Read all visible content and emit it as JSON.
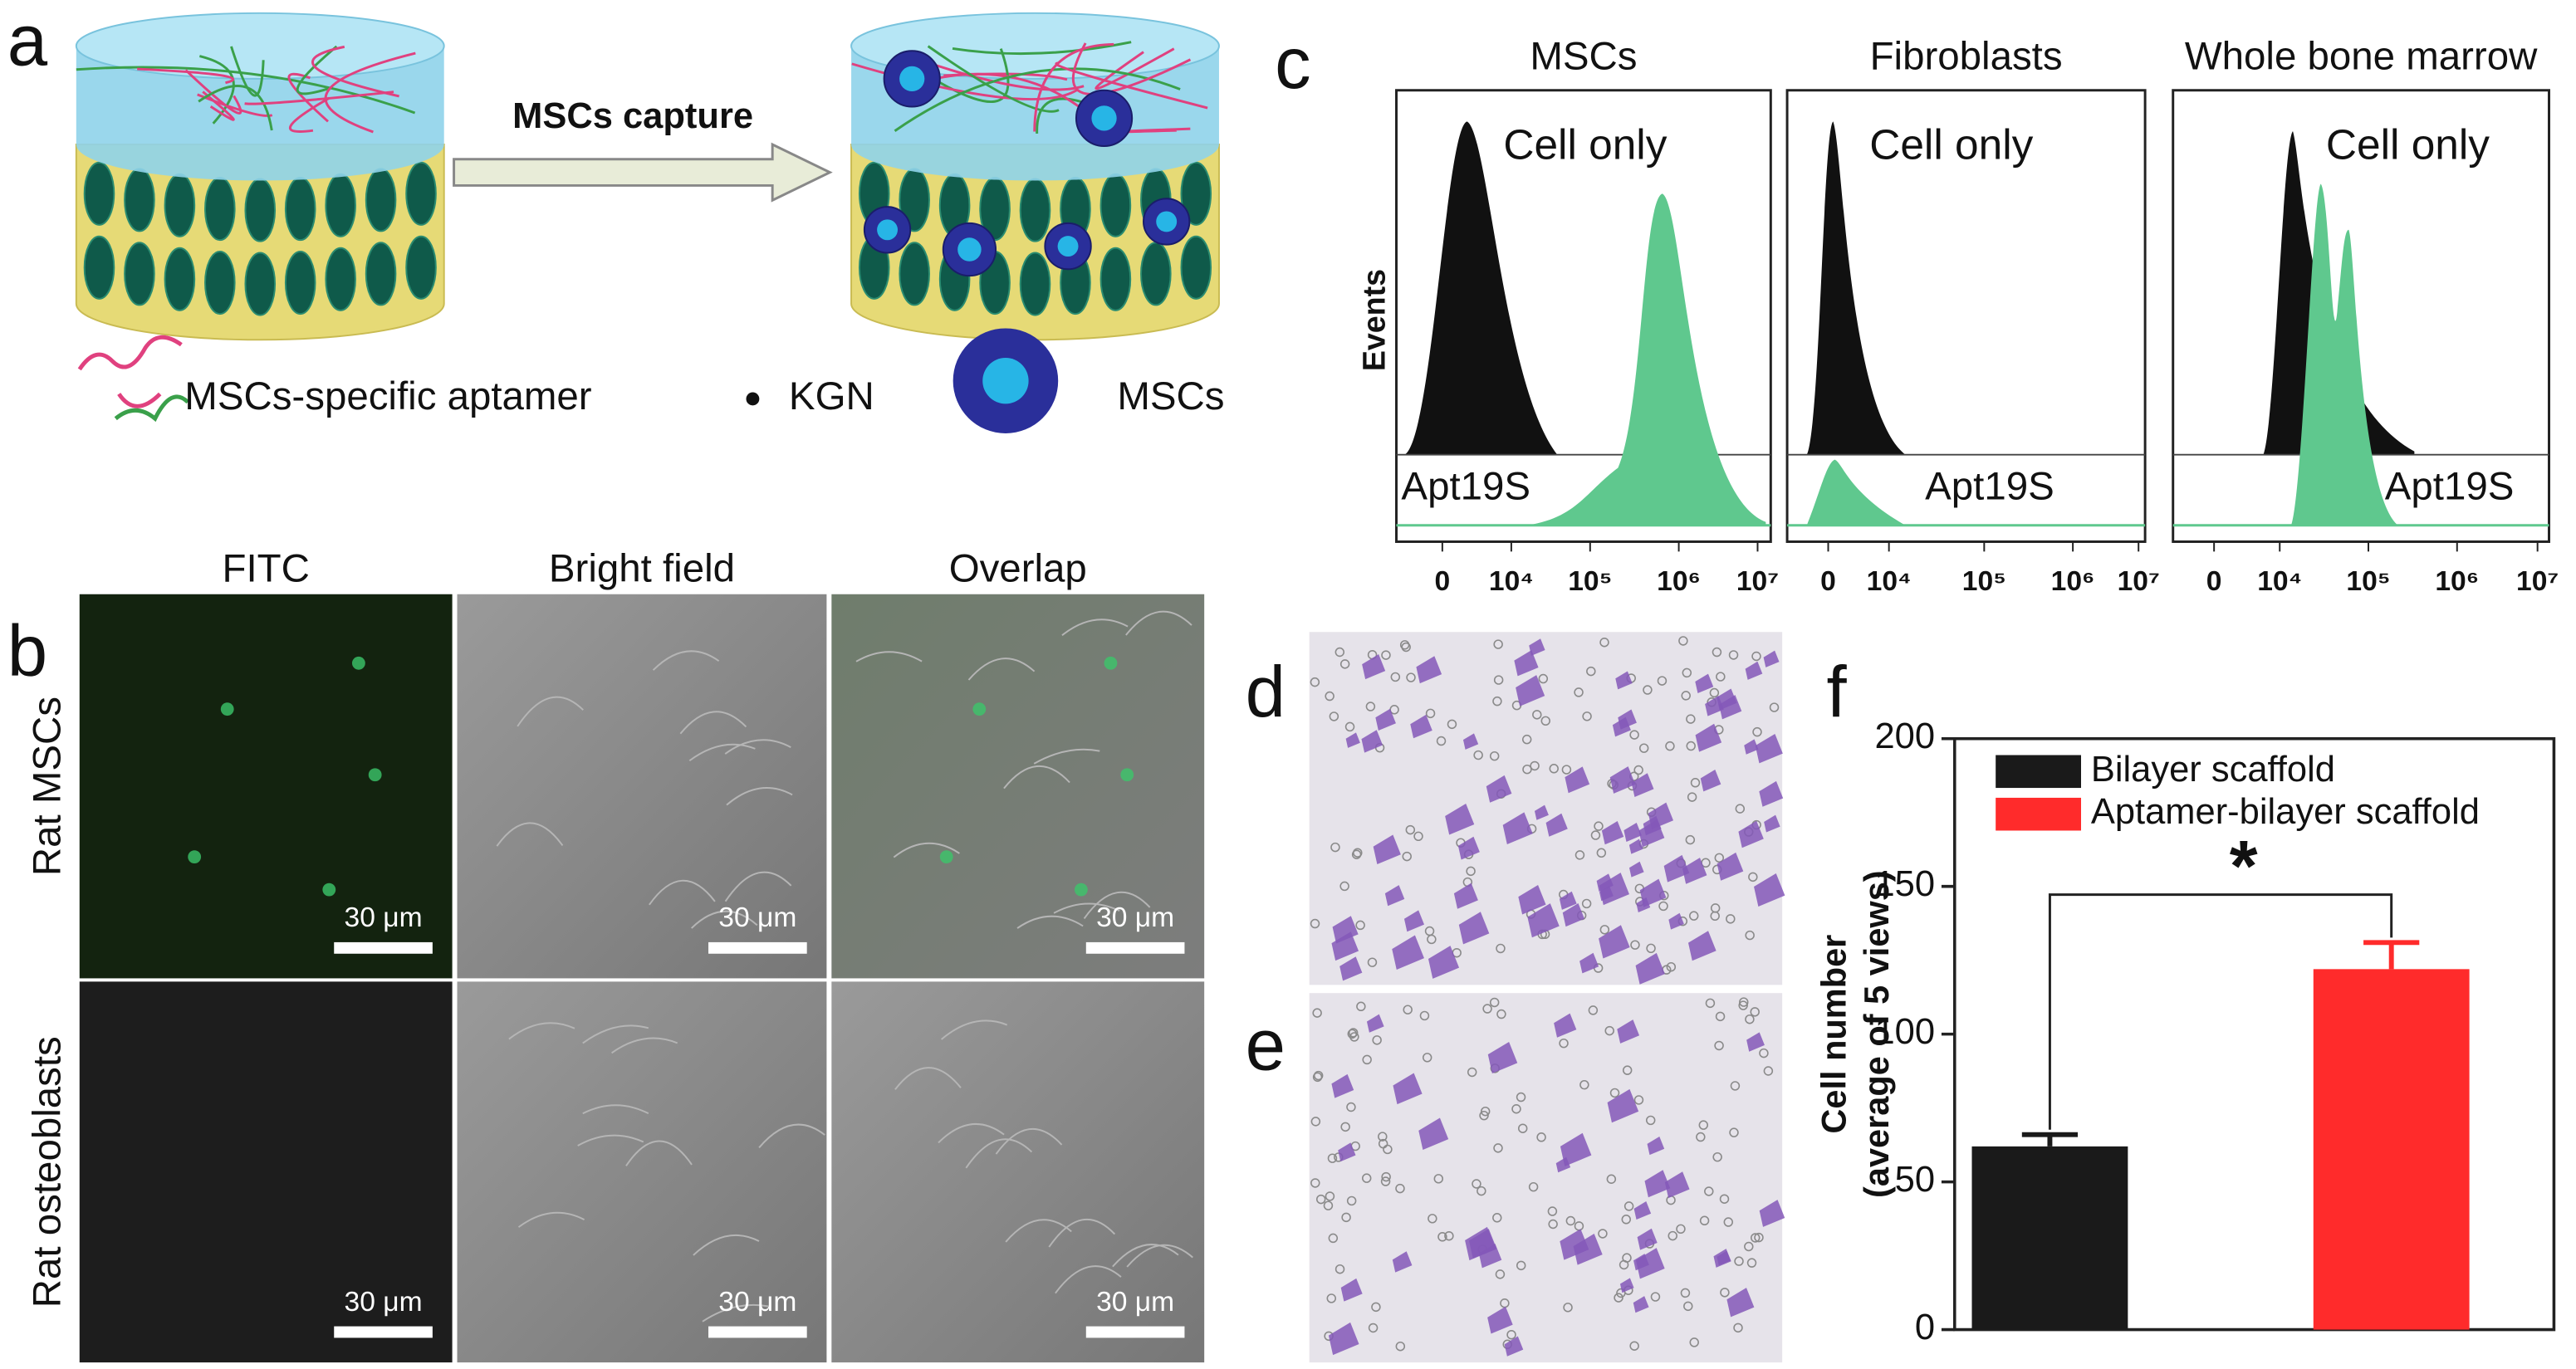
{
  "figure": {
    "panel_a": {
      "label": "a",
      "capture_label": "MSCs capture",
      "legend": [
        "MSCs-specific aptamer",
        "KGN",
        "MSCs"
      ]
    },
    "panel_b": {
      "label": "b",
      "columns": [
        "FITC",
        "Bright field",
        "Overlap"
      ],
      "rows": [
        "Rat MSCs",
        "Rat osteoblasts"
      ],
      "scale_bar": "30 μm"
    },
    "panel_c": {
      "label": "c",
      "titles": [
        "MSCs",
        "Fibroblasts",
        "Whole bone marrow"
      ],
      "y_label": "Events",
      "top_label": "Cell only",
      "bottom_label": "Apt19S",
      "x_tick_labels": [
        "0",
        "10⁴",
        "10⁵",
        "10⁶",
        "10⁷"
      ]
    },
    "panel_d": {
      "label": "d"
    },
    "panel_e": {
      "label": "e"
    },
    "panel_f": {
      "label": "f"
    }
  },
  "chart_data": {
    "type": "bar",
    "y_label": [
      "Cell number",
      "(average of 5 views)"
    ],
    "series": [
      {
        "name": "Bilayer scaffold",
        "color": "#1a1a1a",
        "values": [
          62
        ],
        "errors": [
          4
        ]
      },
      {
        "name": "Aptamer-bilayer scaffold",
        "color": "#ff2b2b",
        "values": [
          122
        ],
        "errors": [
          9
        ]
      }
    ],
    "annotation": "*",
    "ylim": [
      0,
      200
    ],
    "yticks": [
      0,
      50,
      100,
      150,
      200
    ],
    "legend": "upper-left"
  }
}
